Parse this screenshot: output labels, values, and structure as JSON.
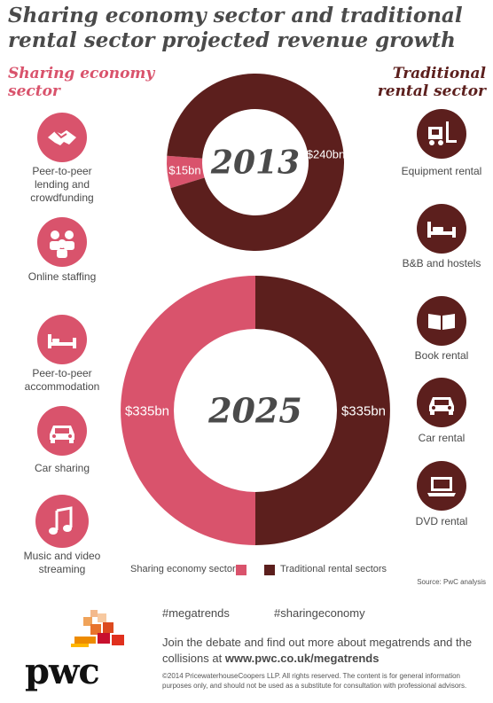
{
  "title": "Sharing economy sector and traditional rental sector projected revenue growth",
  "left_header": "Sharing economy sector",
  "right_header": "Traditional rental sector",
  "sharing_items": [
    {
      "label": "Peer-to-peer lending and crowdfunding",
      "icon": "handshake-icon"
    },
    {
      "label": "Online staffing",
      "icon": "people-icon"
    },
    {
      "label": "Peer-to-peer accommodation",
      "icon": "bed-icon"
    },
    {
      "label": "Car sharing",
      "icon": "car-icon"
    },
    {
      "label": "Music and video streaming",
      "icon": "music-note-icon"
    }
  ],
  "traditional_items": [
    {
      "label": "Equipment rental",
      "icon": "forklift-icon"
    },
    {
      "label": "B&B and hostels",
      "icon": "bed-icon"
    },
    {
      "label": "Book rental",
      "icon": "book-icon"
    },
    {
      "label": "Car rental",
      "icon": "car-icon"
    },
    {
      "label": "DVD rental",
      "icon": "laptop-icon"
    }
  ],
  "colors": {
    "sharing": "#d9536c",
    "traditional": "#5c1f1d"
  },
  "chart_data": [
    {
      "type": "pie",
      "title": "2013",
      "series": [
        {
          "name": "Sharing economy sectors",
          "value": 15,
          "label": "$15bn"
        },
        {
          "name": "Traditional rental sectors",
          "value": 240,
          "label": "$240bn"
        }
      ]
    },
    {
      "type": "pie",
      "title": "2025",
      "series": [
        {
          "name": "Sharing economy sectors",
          "value": 335,
          "label": "$335bn"
        },
        {
          "name": "Traditional rental sectors",
          "value": 335,
          "label": "$335bn"
        }
      ]
    }
  ],
  "legend": [
    "Sharing economy sectors",
    "Traditional rental sectors"
  ],
  "source": "Source: PwC analysis",
  "hashtags": [
    "#megatrends",
    "#sharingeconomy"
  ],
  "join_text": "Join the debate and find out more about megatrends and the collisions at",
  "join_link": "www.pwc.co.uk/megatrends",
  "copyright": "©2014 PricewaterhouseCoopers LLP. All rights reserved. The content is for general information purposes only, and should not be used as a substitute for consultation with professional advisors.",
  "logo_text": "pwc"
}
